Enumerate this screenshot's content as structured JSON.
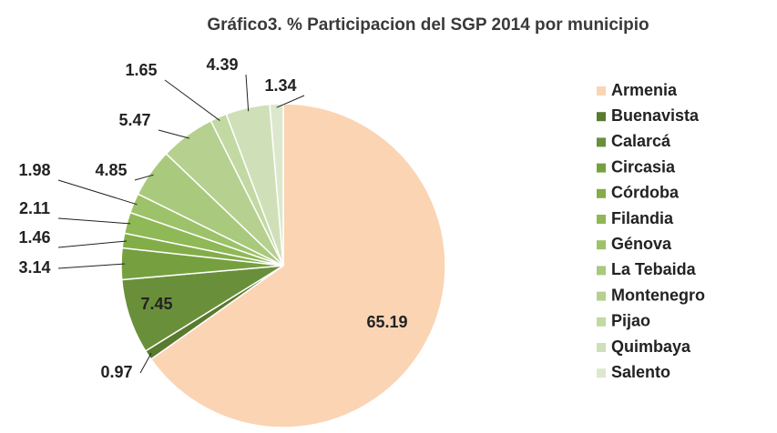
{
  "chart_data": {
    "type": "pie",
    "title": "Gráfico3. % Participacion del SGP 2014 por municipio",
    "categories": [
      "Armenia",
      "Buenavista",
      "Calarcá",
      "Circasia",
      "Córdoba",
      "Filandia",
      "Génova",
      "La Tebaida",
      "Montenegro",
      "Pijao",
      "Quimbaya",
      "Salento"
    ],
    "values": [
      65.19,
      0.97,
      7.45,
      3.14,
      1.46,
      2.11,
      1.98,
      4.85,
      5.47,
      1.65,
      4.39,
      1.34
    ],
    "colors": [
      "#fbd4b4",
      "#5a7a2e",
      "#6a8f3a",
      "#76a040",
      "#82ad48",
      "#8fb856",
      "#9dc26a",
      "#a9c97c",
      "#b5d08f",
      "#c2d9a3",
      "#cfe0b8",
      "#dce8cc"
    ],
    "legend": "right"
  }
}
